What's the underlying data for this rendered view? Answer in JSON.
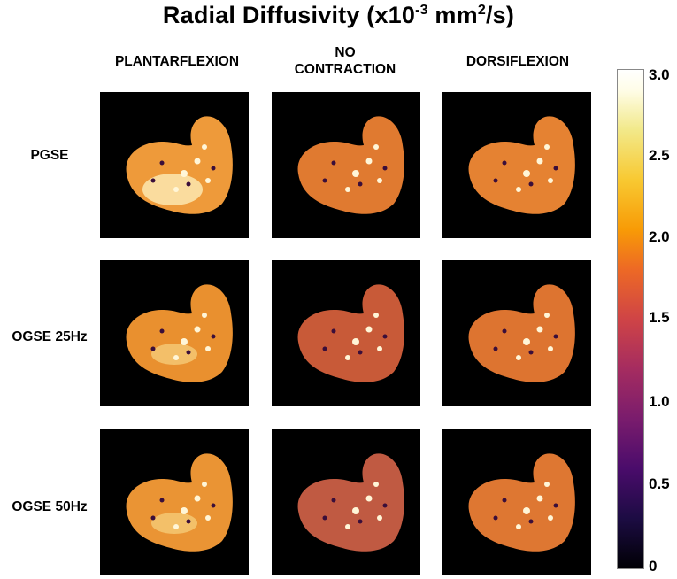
{
  "title": {
    "main": "Radial Diffusivity (x10",
    "exponent": "-3",
    "unit": " mm",
    "unit_exponent": "2",
    "unit_tail": "/s)"
  },
  "columns": [
    {
      "line1": "PLANTARFLEXION",
      "line2": ""
    },
    {
      "line1": "NO",
      "line2": "CONTRACTION"
    },
    {
      "line1": "DORSIFLEXION",
      "line2": ""
    }
  ],
  "rows": [
    "PGSE",
    "OGSE 25Hz",
    "OGSE 50Hz"
  ],
  "colorbar": {
    "min": 0,
    "max": 3.0,
    "ticks": [
      "3.0",
      "2.5",
      "2.0",
      "1.5",
      "1.0",
      "0.5",
      "0"
    ],
    "colormap": "inferno"
  },
  "panel_tone": [
    [
      "#ee9a3a",
      "#e07a30",
      "#e58232"
    ],
    [
      "#e9902f",
      "#c85a38",
      "#dd7430"
    ],
    [
      "#ea9434",
      "#c05a42",
      "#de7732"
    ]
  ],
  "colors": {
    "background": "#ffffff",
    "panel_background": "#000000",
    "highlight": "#fff6d8"
  }
}
